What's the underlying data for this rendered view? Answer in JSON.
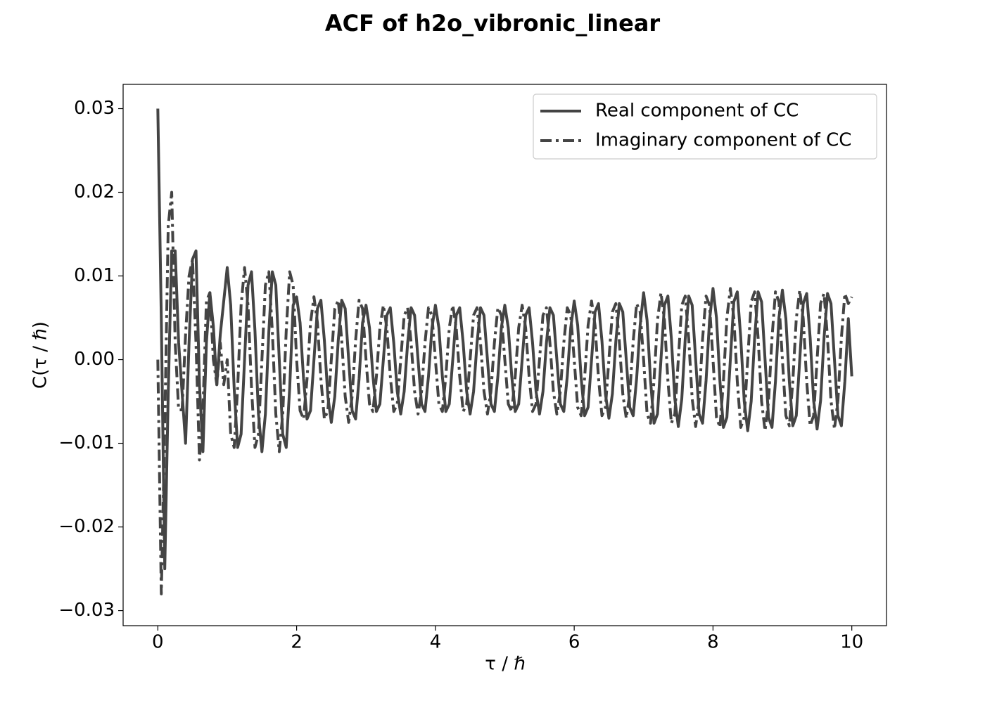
{
  "chart_data": {
    "type": "line",
    "title": "ACF of h2o_vibronic_linear",
    "x_label": "τ / ℏ",
    "y_label": "C(τ / ℏ)",
    "legend": "upper right",
    "x": [
      0,
      0.05,
      0.1,
      0.15,
      0.2,
      0.25,
      0.3,
      0.35,
      0.4,
      0.45,
      0.5,
      0.55,
      0.6,
      0.65,
      0.7,
      0.75,
      0.8,
      0.85,
      0.9,
      0.95,
      1,
      1.05,
      1.1,
      1.15,
      1.2,
      1.25,
      1.3,
      1.35,
      1.4,
      1.45,
      1.5,
      1.55,
      1.6,
      1.65,
      1.7,
      1.75,
      1.8,
      1.85,
      1.9,
      1.95,
      2,
      2.05,
      2.1,
      2.15,
      2.2,
      2.25,
      2.3,
      2.35,
      2.4,
      2.45,
      2.5,
      2.55,
      2.6,
      2.65,
      2.7,
      2.75,
      2.8,
      2.85,
      2.9,
      2.95,
      3,
      3.05,
      3.1,
      3.15,
      3.2,
      3.25,
      3.3,
      3.35,
      3.4,
      3.45,
      3.5,
      3.55,
      3.6,
      3.65,
      3.7,
      3.75,
      3.8,
      3.85,
      3.9,
      3.95,
      4,
      4.05,
      4.1,
      4.15,
      4.2,
      4.25,
      4.3,
      4.35,
      4.4,
      4.45,
      4.5,
      4.55,
      4.6,
      4.65,
      4.7,
      4.75,
      4.8,
      4.85,
      4.9,
      4.95,
      5,
      5.05,
      5.1,
      5.15,
      5.2,
      5.25,
      5.3,
      5.35,
      5.4,
      5.45,
      5.5,
      5.55,
      5.6,
      5.65,
      5.7,
      5.75,
      5.8,
      5.85,
      5.9,
      5.95,
      6,
      6.05,
      6.1,
      6.15,
      6.2,
      6.25,
      6.3,
      6.35,
      6.4,
      6.45,
      6.5,
      6.55,
      6.6,
      6.65,
      6.7,
      6.75,
      6.8,
      6.85,
      6.9,
      6.95,
      7,
      7.05,
      7.1,
      7.15,
      7.2,
      7.25,
      7.3,
      7.35,
      7.4,
      7.45,
      7.5,
      7.55,
      7.6,
      7.65,
      7.7,
      7.75,
      7.8,
      7.85,
      7.9,
      7.95,
      8,
      8.05,
      8.1,
      8.15,
      8.2,
      8.25,
      8.3,
      8.35,
      8.4,
      8.45,
      8.5,
      8.55,
      8.6,
      8.65,
      8.7,
      8.75,
      8.8,
      8.85,
      8.9,
      8.95,
      9,
      9.05,
      9.1,
      9.15,
      9.2,
      9.25,
      9.3,
      9.35,
      9.4,
      9.45,
      9.5,
      9.55,
      9.6,
      9.65,
      9.7,
      9.75,
      9.8,
      9.85,
      9.9,
      9.95,
      10
    ],
    "series": [
      {
        "name": "Real component of CC",
        "color": "#444444",
        "dash": "solid",
        "values": [
          0.03,
          0.005,
          -0.025,
          -0.004,
          0.013,
          0.013,
          0.002,
          -0.004,
          -0.01,
          0.002,
          0.012,
          0.013,
          -0.003,
          -0.011,
          0.002,
          0.008,
          0.004,
          -0.003,
          0.003,
          0.007,
          0.011,
          0.0065,
          -0.0034,
          -0.0105,
          -0.0089,
          0,
          0.0089,
          0.0105,
          0.0034,
          -0.0065,
          -0.011,
          -0.0065,
          0.0034,
          0.0105,
          0.0089,
          0,
          -0.0089,
          -0.0105,
          -0.0034,
          0.0065,
          0.0075,
          0.0044,
          -0.0023,
          -0.0071,
          -0.0061,
          0,
          0.0061,
          0.0071,
          0.0023,
          -0.0044,
          -0.0075,
          -0.0044,
          0.0023,
          0.0071,
          0.0061,
          0,
          -0.0061,
          -0.0071,
          -0.0023,
          0.0044,
          0.0065,
          0.0038,
          -0.002,
          -0.0062,
          -0.0053,
          0,
          0.0053,
          0.0062,
          0.002,
          -0.0038,
          -0.0065,
          -0.0038,
          0.002,
          0.0062,
          0.0053,
          0,
          -0.0053,
          -0.0062,
          -0.002,
          0.0038,
          0.0065,
          0.0038,
          -0.002,
          -0.0062,
          -0.0053,
          0,
          0.0053,
          0.0062,
          0.002,
          -0.0038,
          -0.0065,
          -0.0038,
          0.002,
          0.0062,
          0.0053,
          0,
          -0.0053,
          -0.0062,
          -0.002,
          0.0038,
          0.0065,
          0.0038,
          -0.002,
          -0.0062,
          -0.0053,
          0,
          0.0053,
          0.0062,
          0.002,
          -0.0038,
          -0.0065,
          -0.0038,
          0.002,
          0.0062,
          0.0053,
          0,
          -0.0053,
          -0.0062,
          -0.002,
          0.0038,
          0.007,
          0.0041,
          -0.0022,
          -0.0067,
          -0.0057,
          0,
          0.0057,
          0.0067,
          0.0022,
          -0.0041,
          -0.007,
          -0.0041,
          0.0022,
          0.0067,
          0.0057,
          0,
          -0.0057,
          -0.0067,
          -0.0022,
          0.0041,
          0.008,
          0.0047,
          -0.0025,
          -0.0076,
          -0.0065,
          0,
          0.0065,
          0.0076,
          0.0025,
          -0.0047,
          -0.008,
          -0.0047,
          0.0025,
          0.0076,
          0.0065,
          0,
          -0.0065,
          -0.0076,
          -0.0025,
          0.0047,
          0.0085,
          0.005,
          -0.0026,
          -0.0081,
          -0.0069,
          0,
          0.0069,
          0.0081,
          0.0026,
          -0.005,
          -0.0085,
          -0.005,
          0.0026,
          0.0081,
          0.0069,
          0,
          -0.0069,
          -0.0081,
          -0.0026,
          0.005,
          0.0083,
          0.0049,
          -0.0026,
          -0.0079,
          -0.0067,
          0,
          0.0067,
          0.0079,
          0.0026,
          -0.0049,
          -0.0083,
          -0.0049,
          0.0026,
          0.0079,
          0.0067,
          0,
          -0.0067,
          -0.0079,
          -0.0026,
          0.0049,
          -0.002
        ]
      },
      {
        "name": "Imaginary component of CC",
        "color": "#444444",
        "dash": "dashdot",
        "values": [
          0,
          -0.028,
          -0.008,
          0.016,
          0.02,
          0.002,
          -0.006,
          -0.006,
          0.003,
          0.01,
          0.012,
          0.002,
          -0.012,
          -0.006,
          0.007,
          0.008,
          0,
          -0.003,
          0.002,
          -0.003,
          0,
          -0.0089,
          -0.0105,
          -0.0034,
          0.0065,
          0.011,
          0.0065,
          -0.0034,
          -0.0105,
          -0.0089,
          0,
          0.0089,
          0.0105,
          0.0034,
          -0.0065,
          -0.011,
          -0.0065,
          0.0034,
          0.0105,
          0.0089,
          0,
          -0.0061,
          -0.0071,
          -0.0023,
          0.0044,
          0.0075,
          0.0044,
          -0.0023,
          -0.0071,
          -0.0061,
          0,
          0.0061,
          0.0071,
          0.0023,
          -0.0044,
          -0.0075,
          -0.0044,
          0.0023,
          0.0071,
          0.0061,
          0,
          -0.0053,
          -0.0062,
          -0.002,
          0.0038,
          0.0065,
          0.0038,
          -0.002,
          -0.0062,
          -0.0053,
          0,
          0.0053,
          0.0062,
          0.002,
          -0.0038,
          -0.0065,
          -0.0038,
          0.002,
          0.0062,
          0.0053,
          0,
          -0.0053,
          -0.0062,
          -0.002,
          0.0038,
          0.0065,
          0.0038,
          -0.002,
          -0.0062,
          -0.0053,
          0,
          0.0053,
          0.0062,
          0.002,
          -0.0038,
          -0.0065,
          -0.0038,
          0.002,
          0.0062,
          0.0053,
          0,
          -0.0053,
          -0.0062,
          -0.002,
          0.0038,
          0.0065,
          0.0038,
          -0.002,
          -0.0062,
          -0.0053,
          0,
          0.0053,
          0.0062,
          0.002,
          -0.0038,
          -0.0065,
          -0.0038,
          0.002,
          0.0062,
          0.0053,
          0,
          -0.0057,
          -0.0067,
          -0.0022,
          0.0041,
          0.007,
          0.0041,
          -0.0022,
          -0.0067,
          -0.0057,
          0,
          0.0057,
          0.0067,
          0.0022,
          -0.0041,
          -0.007,
          -0.0041,
          0.0022,
          0.0067,
          0.0057,
          0,
          -0.0065,
          -0.0076,
          -0.0025,
          0.0047,
          0.008,
          0.0047,
          -0.0025,
          -0.0076,
          -0.0065,
          0,
          0.0065,
          0.0076,
          0.0025,
          -0.0047,
          -0.008,
          -0.0047,
          0.0025,
          0.0076,
          0.0065,
          0,
          -0.0069,
          -0.0081,
          -0.0026,
          0.005,
          0.0085,
          0.005,
          -0.0026,
          -0.0081,
          -0.0069,
          0,
          0.0069,
          0.0081,
          0.0026,
          -0.005,
          -0.0085,
          -0.005,
          0.0026,
          0.0081,
          0.0069,
          0,
          -0.0067,
          -0.0079,
          -0.0026,
          0.0049,
          0.0083,
          0.0049,
          -0.0026,
          -0.0079,
          -0.0067,
          0,
          0.0067,
          0.0079,
          0.0026,
          -0.0049,
          -0.0083,
          -0.0049,
          0.0026,
          0.0079,
          0.0067,
          0.0075
        ]
      }
    ],
    "xlim": [
      -0.5,
      10.5
    ],
    "ylim": [
      -0.0318,
      0.0329
    ],
    "xticks": [
      0,
      2,
      4,
      6,
      8,
      10
    ],
    "yticks": [
      {
        "value": -0.03,
        "label": "−0.03"
      },
      {
        "value": -0.02,
        "label": "−0.02"
      },
      {
        "value": -0.01,
        "label": "−0.01"
      },
      {
        "value": 0,
        "label": "0.00"
      },
      0.01,
      0.02,
      0.03
    ],
    "grid": false
  }
}
